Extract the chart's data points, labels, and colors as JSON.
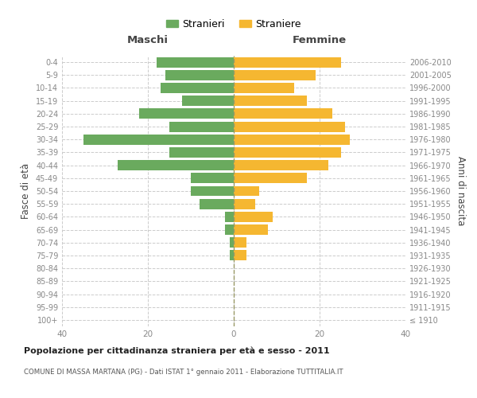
{
  "age_groups": [
    "100+",
    "95-99",
    "90-94",
    "85-89",
    "80-84",
    "75-79",
    "70-74",
    "65-69",
    "60-64",
    "55-59",
    "50-54",
    "45-49",
    "40-44",
    "35-39",
    "30-34",
    "25-29",
    "20-24",
    "15-19",
    "10-14",
    "5-9",
    "0-4"
  ],
  "birth_years": [
    "≤ 1910",
    "1911-1915",
    "1916-1920",
    "1921-1925",
    "1926-1930",
    "1931-1935",
    "1936-1940",
    "1941-1945",
    "1946-1950",
    "1951-1955",
    "1956-1960",
    "1961-1965",
    "1966-1970",
    "1971-1975",
    "1976-1980",
    "1981-1985",
    "1986-1990",
    "1991-1995",
    "1996-2000",
    "2001-2005",
    "2006-2010"
  ],
  "males": [
    0,
    0,
    0,
    0,
    0,
    1,
    1,
    2,
    2,
    8,
    10,
    10,
    27,
    15,
    35,
    15,
    22,
    12,
    17,
    16,
    18
  ],
  "females": [
    0,
    0,
    0,
    0,
    0,
    3,
    3,
    8,
    9,
    5,
    6,
    17,
    22,
    25,
    27,
    26,
    23,
    17,
    14,
    19,
    25
  ],
  "male_color": "#6aaa5e",
  "female_color": "#f5b731",
  "background_color": "#ffffff",
  "grid_color": "#cccccc",
  "title": "Popolazione per cittadinanza straniera per età e sesso - 2011",
  "subtitle": "COMUNE DI MASSA MARTANA (PG) - Dati ISTAT 1° gennaio 2011 - Elaborazione TUTTITALIA.IT",
  "xlabel_left": "Maschi",
  "xlabel_right": "Femmine",
  "ylabel_left": "Fasce di età",
  "ylabel_right": "Anni di nascita",
  "legend_male": "Stranieri",
  "legend_female": "Straniere",
  "xlim": 40,
  "bar_height": 0.8
}
